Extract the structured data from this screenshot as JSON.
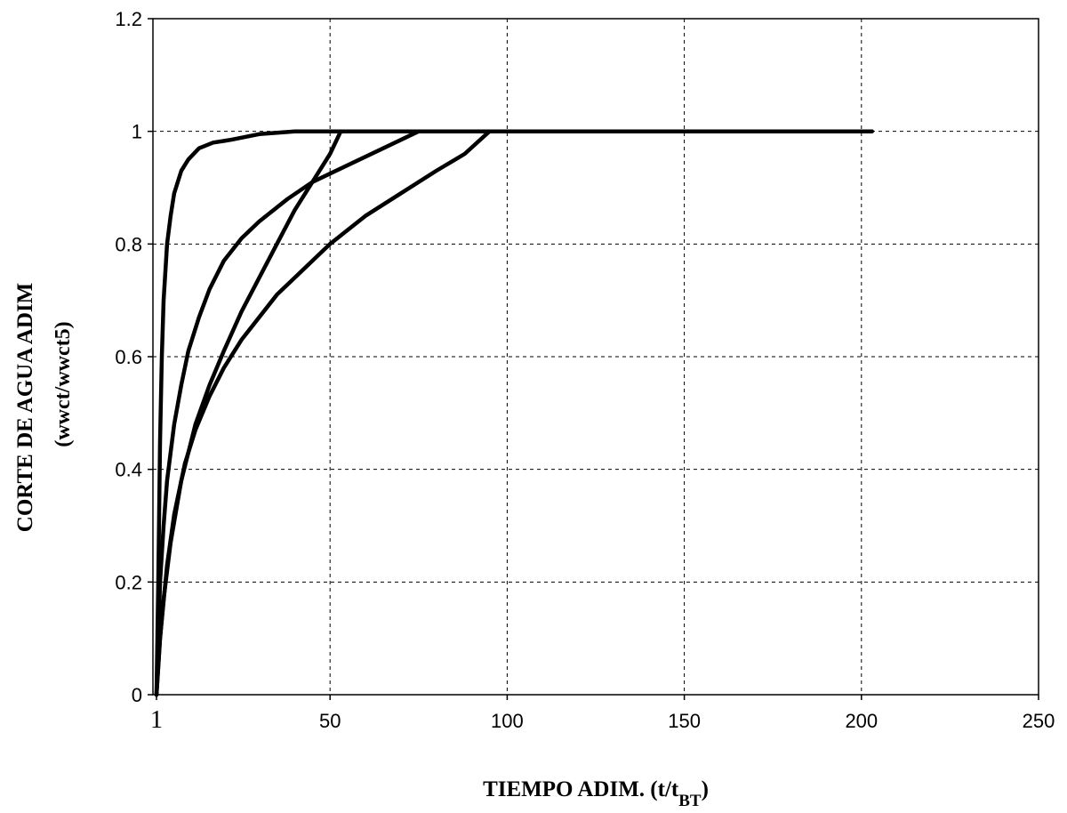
{
  "chart_data": {
    "type": "line",
    "title": "",
    "xlabel": {
      "main": "TIEMPO ADIM. (t/t",
      "sub": "BT",
      "close": ")"
    },
    "ylabel": "CORTE DE AGUA ADIM",
    "ylabel2": "(wwct/wwct5)",
    "xlim": [
      0,
      250
    ],
    "ylim": [
      0,
      1.2
    ],
    "x_ticks": [
      {
        "value": 1,
        "label": "1"
      },
      {
        "value": 50,
        "label": "50"
      },
      {
        "value": 100,
        "label": "100"
      },
      {
        "value": 150,
        "label": "150"
      },
      {
        "value": 200,
        "label": "200"
      },
      {
        "value": 250,
        "label": "250"
      }
    ],
    "y_ticks": [
      {
        "value": 0,
        "label": "0"
      },
      {
        "value": 0.2,
        "label": "0.2"
      },
      {
        "value": 0.4,
        "label": "0.4"
      },
      {
        "value": 0.6,
        "label": "0.6"
      },
      {
        "value": 0.8,
        "label": "0.8"
      },
      {
        "value": 1.0,
        "label": "1"
      },
      {
        "value": 1.2,
        "label": "1.2"
      }
    ],
    "grid": true,
    "legend": "none",
    "series": [
      {
        "x": [
          1,
          1.5,
          2,
          2.5,
          3,
          4,
          5,
          6,
          8,
          10,
          13,
          17,
          22,
          30,
          40,
          60,
          80,
          100,
          150,
          203
        ],
        "y": [
          0,
          0.2,
          0.45,
          0.6,
          0.7,
          0.8,
          0.85,
          0.89,
          0.93,
          0.95,
          0.97,
          0.98,
          0.985,
          0.995,
          1.0,
          1.0,
          1.0,
          1.0,
          1.0,
          1.0
        ]
      },
      {
        "x": [
          1,
          2,
          3,
          4,
          6,
          8,
          10,
          13,
          16,
          20,
          25,
          30,
          38,
          45,
          55,
          65,
          75
        ],
        "y": [
          0,
          0.2,
          0.3,
          0.38,
          0.48,
          0.55,
          0.61,
          0.67,
          0.72,
          0.77,
          0.81,
          0.84,
          0.88,
          0.91,
          0.94,
          0.97,
          1.0
        ]
      },
      {
        "x": [
          1,
          2,
          3,
          5,
          8,
          12,
          16,
          20,
          25,
          30,
          35,
          40,
          45,
          50,
          53
        ],
        "y": [
          0,
          0.1,
          0.17,
          0.27,
          0.38,
          0.48,
          0.55,
          0.61,
          0.68,
          0.74,
          0.8,
          0.86,
          0.91,
          0.96,
          1.0
        ]
      },
      {
        "x": [
          1,
          2,
          4,
          6,
          9,
          12,
          16,
          20,
          25,
          30,
          35,
          40,
          50,
          60,
          70,
          80,
          88,
          95
        ],
        "y": [
          0,
          0.1,
          0.23,
          0.32,
          0.41,
          0.47,
          0.53,
          0.58,
          0.63,
          0.67,
          0.71,
          0.74,
          0.8,
          0.85,
          0.89,
          0.93,
          0.96,
          1.0
        ]
      }
    ]
  }
}
